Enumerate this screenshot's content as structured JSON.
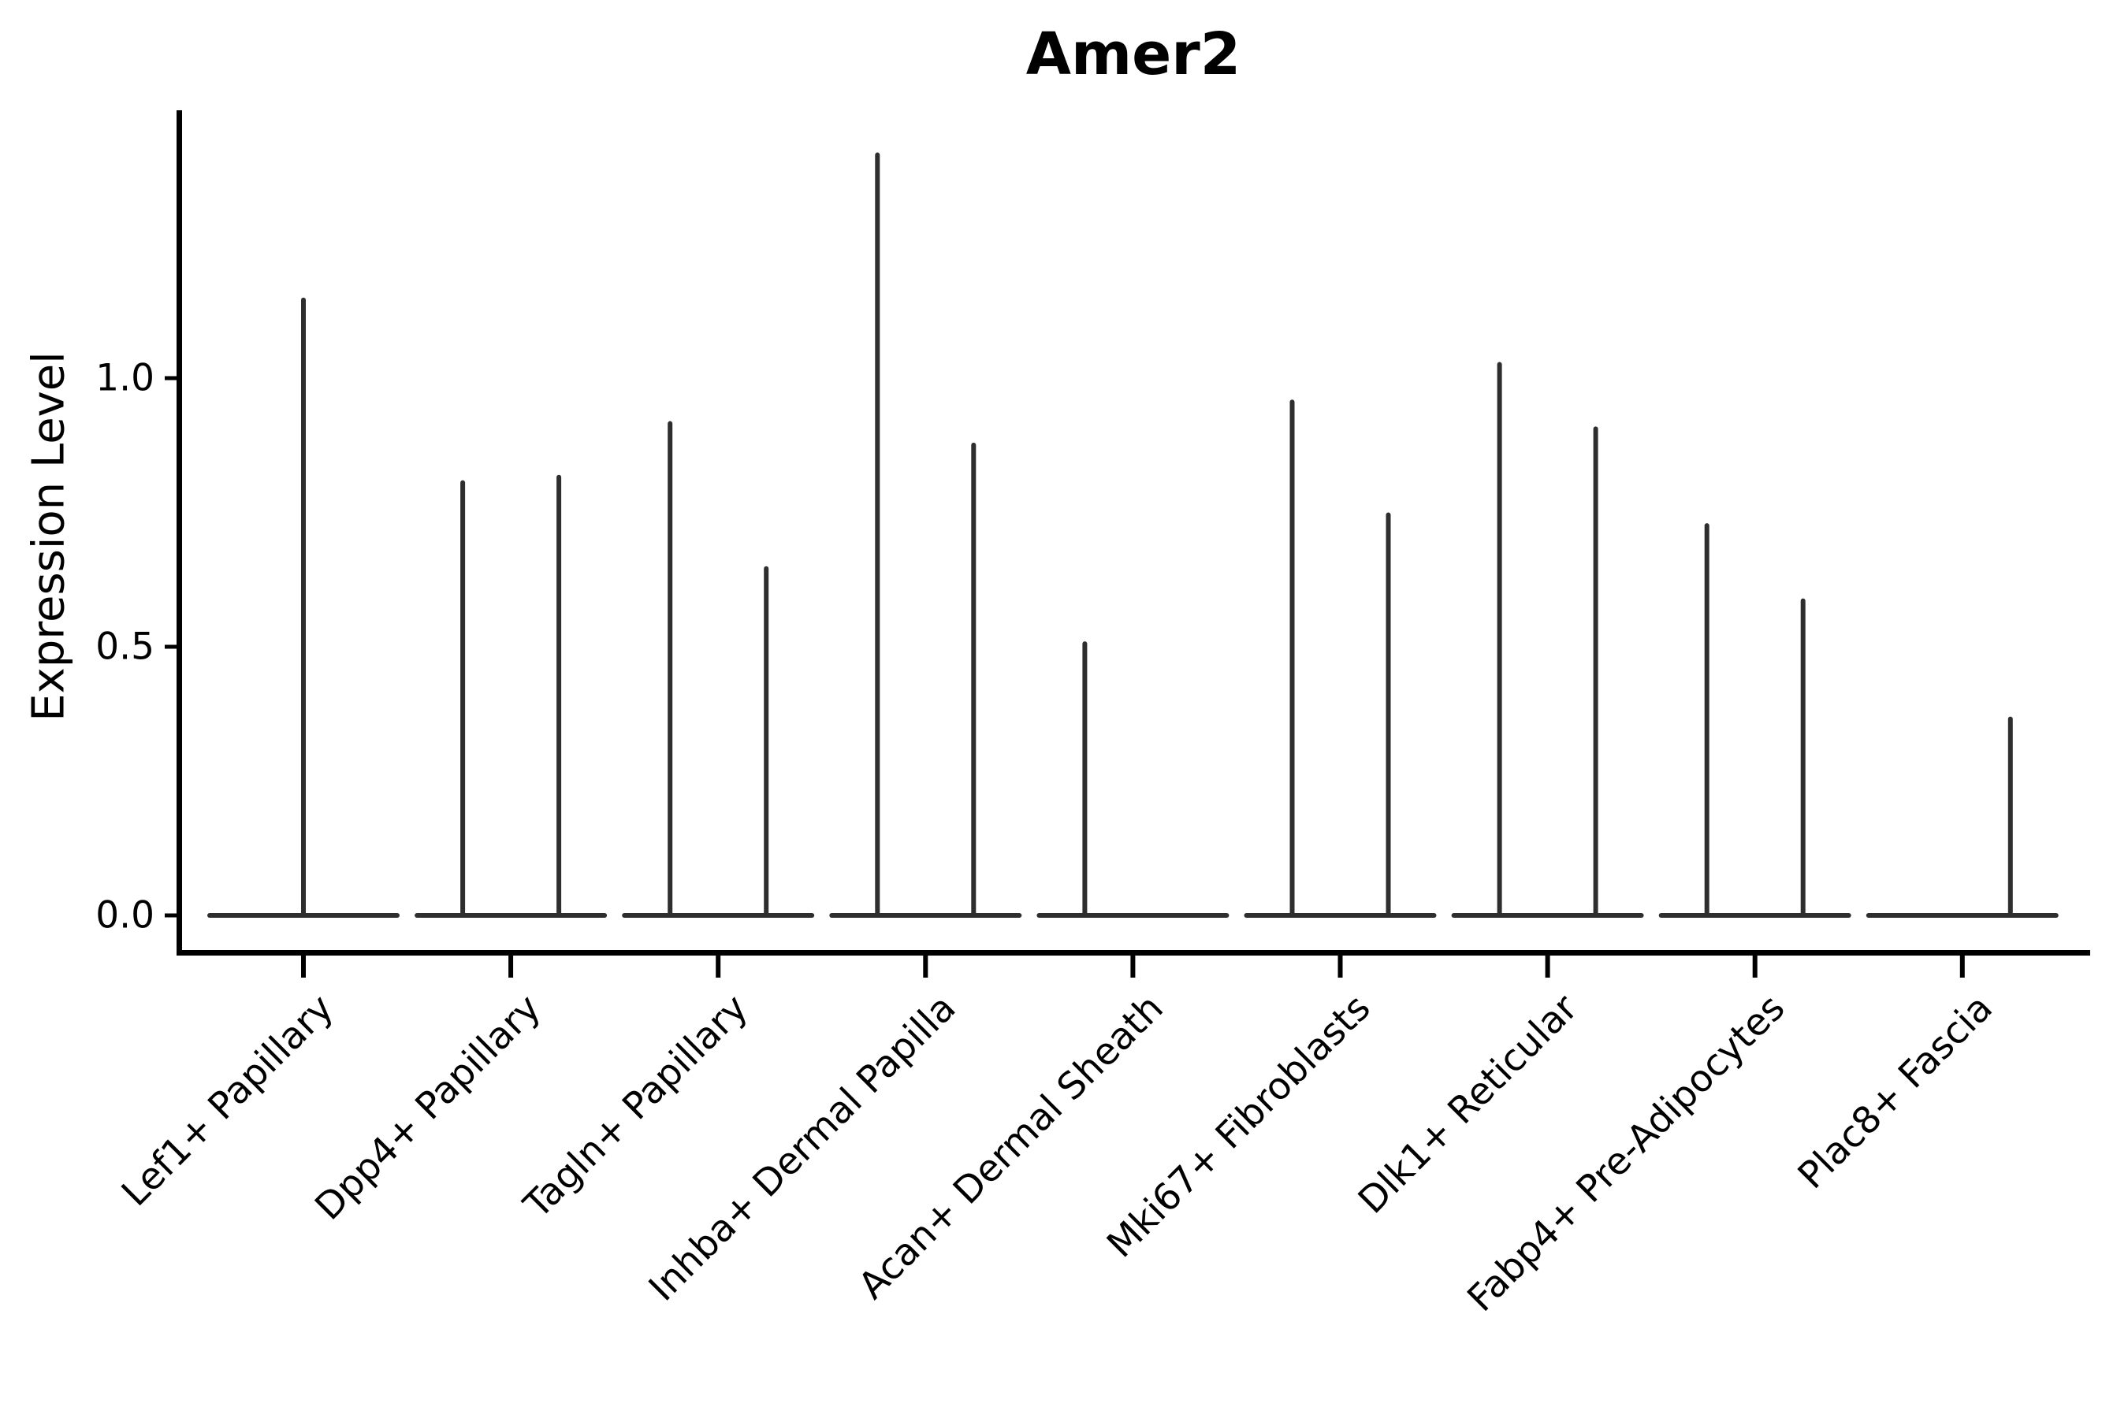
{
  "title": "Amer2",
  "chart_data": {
    "type": "violin",
    "title": "Amer2",
    "ylabel": "Expression Level",
    "xlabel": "",
    "grid": false,
    "legend": "none",
    "ylim": [
      -0.07,
      1.5
    ],
    "yticks": [
      {
        "label": "0.0",
        "value": 0.0
      },
      {
        "label": "0.5",
        "value": 0.5
      },
      {
        "label": "1.0",
        "value": 1.0
      }
    ],
    "categories": [
      "Lef1+ Papillary",
      "Dpp4+ Papillary",
      "Tagln+ Papillary",
      "Inhba+ Dermal Papilla",
      "Acan+ Dermal Sheath",
      "Mki67+ Fibroblasts",
      "Dlk1+ Reticular",
      "Fabp4+ Pre-Adipocytes",
      "Plac8+ Fascia"
    ],
    "violins": [
      {
        "category": "Lef1+ Papillary",
        "spikes": [
          {
            "slot": "center",
            "max": 1.15
          }
        ]
      },
      {
        "category": "Dpp4+ Papillary",
        "spikes": [
          {
            "slot": "left",
            "max": 0.81
          },
          {
            "slot": "right",
            "max": 0.82
          }
        ]
      },
      {
        "category": "Tagln+ Papillary",
        "spikes": [
          {
            "slot": "left",
            "max": 0.92
          },
          {
            "slot": "right",
            "max": 0.65
          }
        ]
      },
      {
        "category": "Inhba+ Dermal Papilla",
        "spikes": [
          {
            "slot": "left",
            "max": 1.42
          },
          {
            "slot": "right",
            "max": 0.88
          }
        ]
      },
      {
        "category": "Acan+ Dermal Sheath",
        "spikes": [
          {
            "slot": "left",
            "max": 0.51
          },
          {
            "slot": "right",
            "max": 0.0
          }
        ]
      },
      {
        "category": "Mki67+ Fibroblasts",
        "spikes": [
          {
            "slot": "left",
            "max": 0.96
          },
          {
            "slot": "right",
            "max": 0.75
          }
        ]
      },
      {
        "category": "Dlk1+ Reticular",
        "spikes": [
          {
            "slot": "left",
            "max": 1.03
          },
          {
            "slot": "right",
            "max": 0.91
          }
        ]
      },
      {
        "category": "Fabp4+ Pre-Adipocytes",
        "spikes": [
          {
            "slot": "left",
            "max": 0.73
          },
          {
            "slot": "right",
            "max": 0.59
          }
        ]
      },
      {
        "category": "Plac8+ Fascia",
        "spikes": [
          {
            "slot": "left",
            "max": 0.0
          },
          {
            "slot": "right",
            "max": 0.37
          }
        ]
      }
    ],
    "colors": {
      "violin": "#2e2e2e",
      "axis": "#000000",
      "text": "#000000",
      "background": "#ffffff"
    },
    "notes": "Distributions are concentrated at 0 (flat base); each spike marks the max expression of a violin. Categories with two spikes contain two half-width violins; Acan right half and Plac8 left half are all-zero (flat, no spike)."
  }
}
